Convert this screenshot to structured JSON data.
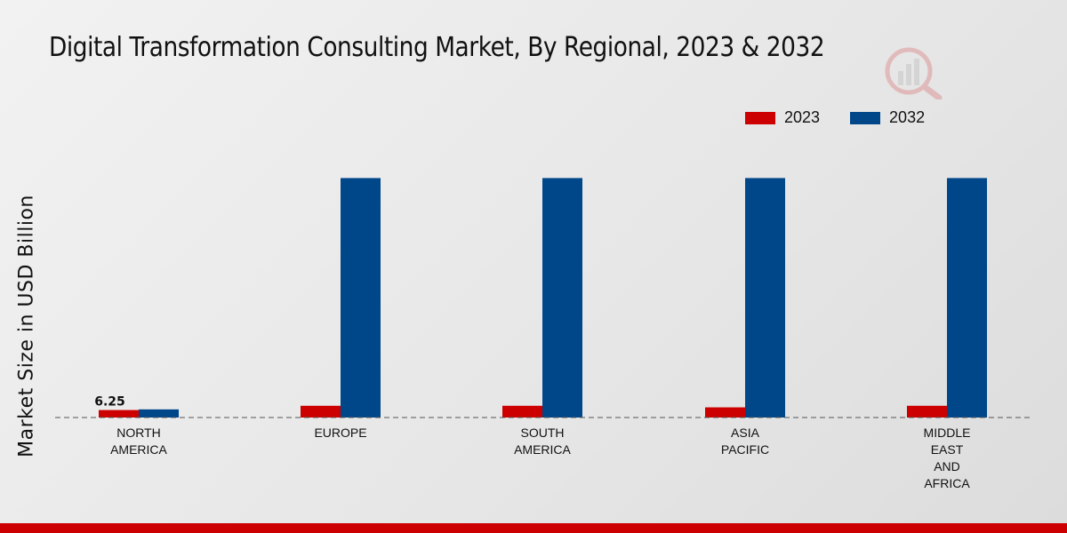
{
  "chart_data": {
    "type": "bar",
    "title": "Digital Transformation Consulting Market, By Regional, 2023 & 2032",
    "xlabel": "",
    "ylabel": "Market Size in USD Billion",
    "categories": [
      [
        "NORTH",
        "AMERICA"
      ],
      [
        "EUROPE"
      ],
      [
        "SOUTH",
        "AMERICA"
      ],
      [
        "ASIA",
        "PACIFIC"
      ],
      [
        "MIDDLE",
        "EAST",
        "AND",
        "AFRICA"
      ]
    ],
    "series": [
      {
        "name": "2023",
        "color": "#cc0000",
        "values": [
          6.25,
          9.8,
          9.8,
          8.5,
          9.8
        ]
      },
      {
        "name": "2032",
        "color": "#00478a",
        "values": [
          6.8,
          200.0,
          200.0,
          200.0,
          200.0
        ]
      }
    ],
    "data_labels": [
      {
        "series": 0,
        "index": 0,
        "text": "6.25"
      }
    ],
    "ylim": [
      0,
      230
    ],
    "grid": false,
    "legend_position": "top-right"
  }
}
